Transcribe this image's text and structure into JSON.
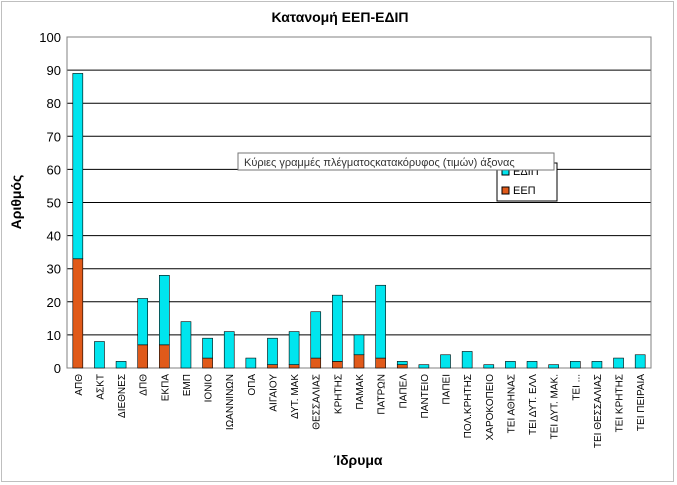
{
  "chart_data": {
    "type": "bar",
    "stacked": true,
    "title": "Κατανομή ΕΕΠ-ΕΔΙΠ",
    "xlabel": "Ίδρυμα",
    "ylabel": "Αριθμός",
    "ylim": [
      0,
      100
    ],
    "yticks": [
      0,
      10,
      20,
      30,
      40,
      50,
      60,
      70,
      80,
      90,
      100
    ],
    "grid": true,
    "categories": [
      "ΑΠΘ",
      "ΑΣΚΤ",
      "ΔΙΕΘΝΕΣ",
      "ΔΠΘ",
      "ΕΚΠΑ",
      "ΕΜΠ",
      "ΙΟΝΙΟ",
      "ΙΩΑΝΝΙΝΩΝ",
      "ΟΠΑ",
      "ΑΙΓΑΙΟΥ",
      "ΔΥΤ. ΜΑΚ",
      "ΘΕΣΣΑΛΙΑΣ",
      "ΚΡΗΤΗΣ",
      "ΠΑΜΑΚ",
      "ΠΑΤΡΩΝ",
      "ΠΑΠΕΛ",
      "ΠΑΝΤΕΙΟ",
      "ΠΑΠΕΙ",
      "ΠΟΛ.ΚΡΗΤΗΣ",
      "ΧΑΡΟΚΟΠΕΙΟ",
      "ΤΕΙ ΑΘΗΝΑΣ",
      "ΤΕΙ ΔΥΤ. ΕΛΛ",
      "ΤΕΙ ΔΥΤ. ΜΑΚ.",
      "ΤΕΙ ...",
      "ΤΕΙ ΘΕΣΣΑΛΙΑΣ",
      "ΤΕΙ ΚΡΗΤΗΣ",
      "ΤΕΙ ΠΕΙΡΑΙΑ"
    ],
    "series": [
      {
        "name": "ΕΕΠ",
        "color": "#e05a1a",
        "values": [
          33,
          0,
          0,
          7,
          7,
          0,
          3,
          0,
          0,
          1,
          1,
          3,
          2,
          4,
          3,
          1,
          0,
          0,
          0,
          0,
          0,
          0,
          0,
          0,
          0,
          0,
          0
        ]
      },
      {
        "name": "ΕΔΙΠ",
        "color": "#00e5ee",
        "values": [
          56,
          8,
          2,
          14,
          21,
          14,
          6,
          11,
          3,
          8,
          10,
          14,
          20,
          6,
          22,
          1,
          1,
          4,
          5,
          1,
          2,
          2,
          1,
          2,
          2,
          3,
          4
        ]
      }
    ],
    "legend": {
      "placement": "right",
      "entries": [
        "ΕΔΙΠ",
        "ΕΕΠ"
      ]
    },
    "tooltip": "Κύριες γραμμές πλέγματοςκατακόρυφος (τιμών) άξονας"
  }
}
